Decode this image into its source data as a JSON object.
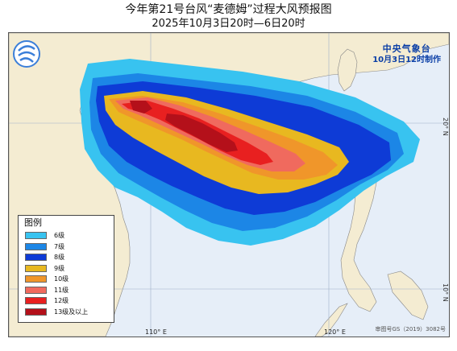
{
  "header": {
    "title": "今年第21号台风“麦德姆”过程大风预报图",
    "subtitle": "2025年10月3日20时—6日20时"
  },
  "agency": {
    "name": "中央气象台",
    "issued": "10月3日12时制作"
  },
  "axes": {
    "lon_labels": [
      "110° E",
      "120° E"
    ],
    "lat_labels": [
      "20° N",
      "10° N"
    ]
  },
  "legend": {
    "title": "图例",
    "items": [
      {
        "label": "6级",
        "color": "#38c3f0"
      },
      {
        "label": "7级",
        "color": "#1c86e6"
      },
      {
        "label": "8级",
        "color": "#0e3bd6"
      },
      {
        "label": "9级",
        "color": "#e8b820"
      },
      {
        "label": "10级",
        "color": "#f0962a"
      },
      {
        "label": "11级",
        "color": "#f06a5e"
      },
      {
        "label": "12级",
        "color": "#e82020"
      },
      {
        "label": "13级及以上",
        "color": "#b4101a"
      }
    ]
  },
  "approval": "审图号GS（2019）3082号",
  "colors": {
    "sea": "#e6eef8",
    "land": "#f4ecd2",
    "grid": "#9fb0c8"
  }
}
